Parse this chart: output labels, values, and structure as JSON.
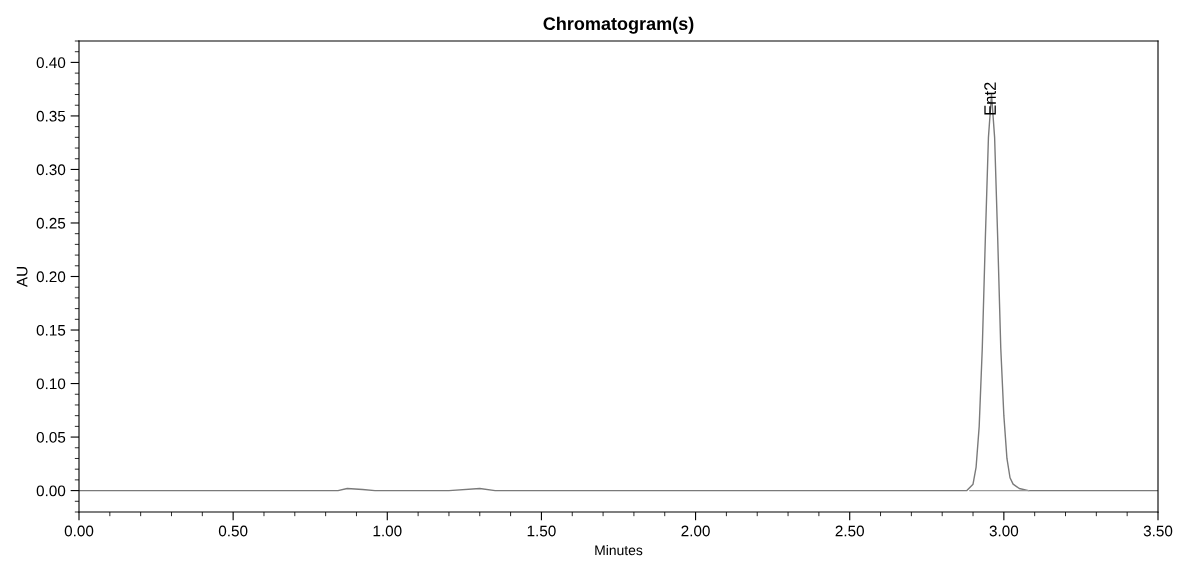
{
  "chart_data": {
    "type": "line",
    "title": "Chromatogram(s)",
    "xlabel": "Minutes",
    "ylabel": "AU",
    "xlim": [
      0,
      3.5
    ],
    "ylim": [
      -0.02,
      0.42
    ],
    "xticks": [
      {
        "value": 0,
        "label": "0.00"
      },
      {
        "value": 0.5,
        "label": "0.50"
      },
      {
        "value": 1,
        "label": "1.00"
      },
      {
        "value": 1.5,
        "label": "1.50"
      },
      {
        "value": 2,
        "label": "2.00"
      },
      {
        "value": 2.5,
        "label": "2.50"
      },
      {
        "value": 3,
        "label": "3.00"
      },
      {
        "value": 3.5,
        "label": "3.50"
      }
    ],
    "yticks": [
      {
        "value": 0,
        "label": "0.00"
      },
      {
        "value": 0.05,
        "label": "0.05"
      },
      {
        "value": 0.1,
        "label": "0.10"
      },
      {
        "value": 0.15,
        "label": "0.15"
      },
      {
        "value": 0.2,
        "label": "0.20"
      },
      {
        "value": 0.25,
        "label": "0.25"
      },
      {
        "value": 0.3,
        "label": "0.30"
      },
      {
        "value": 0.35,
        "label": "0.35"
      },
      {
        "value": 0.4,
        "label": "0.40"
      }
    ],
    "grid": false,
    "marker": "none",
    "line_style": "solid",
    "series": [
      {
        "color": "#7a7a7a",
        "x": [
          0,
          0.05,
          0.1,
          0.2,
          0.3,
          0.4,
          0.45,
          0.6,
          0.8,
          0.84,
          0.87,
          0.92,
          0.96,
          1.05,
          1.2,
          1.3,
          1.35,
          1.5,
          2.0,
          2.5,
          2.85,
          2.88,
          2.9,
          2.91,
          2.92,
          2.93,
          2.94,
          2.95,
          2.96,
          2.97,
          2.98,
          2.99,
          3.0,
          3.01,
          3.02,
          3.03,
          3.05,
          3.08,
          3.2,
          3.5
        ],
        "values": [
          0,
          0,
          0,
          0,
          0,
          0,
          0,
          0,
          0,
          0,
          0.002,
          0.001,
          0,
          0,
          0,
          0.002,
          0,
          0,
          0,
          0,
          0,
          0,
          0.006,
          0.022,
          0.06,
          0.133,
          0.236,
          0.33,
          0.37,
          0.33,
          0.236,
          0.133,
          0.07,
          0.03,
          0.012,
          0.006,
          0.002,
          0,
          0,
          0
        ]
      },
      {
        "color": "#9a9a9a",
        "x": [
          2.89,
          3.08
        ],
        "values": [
          0,
          0
        ]
      }
    ],
    "annotations": [
      {
        "text": "Ent2",
        "x": 2.96,
        "y": 0.35
      }
    ]
  }
}
